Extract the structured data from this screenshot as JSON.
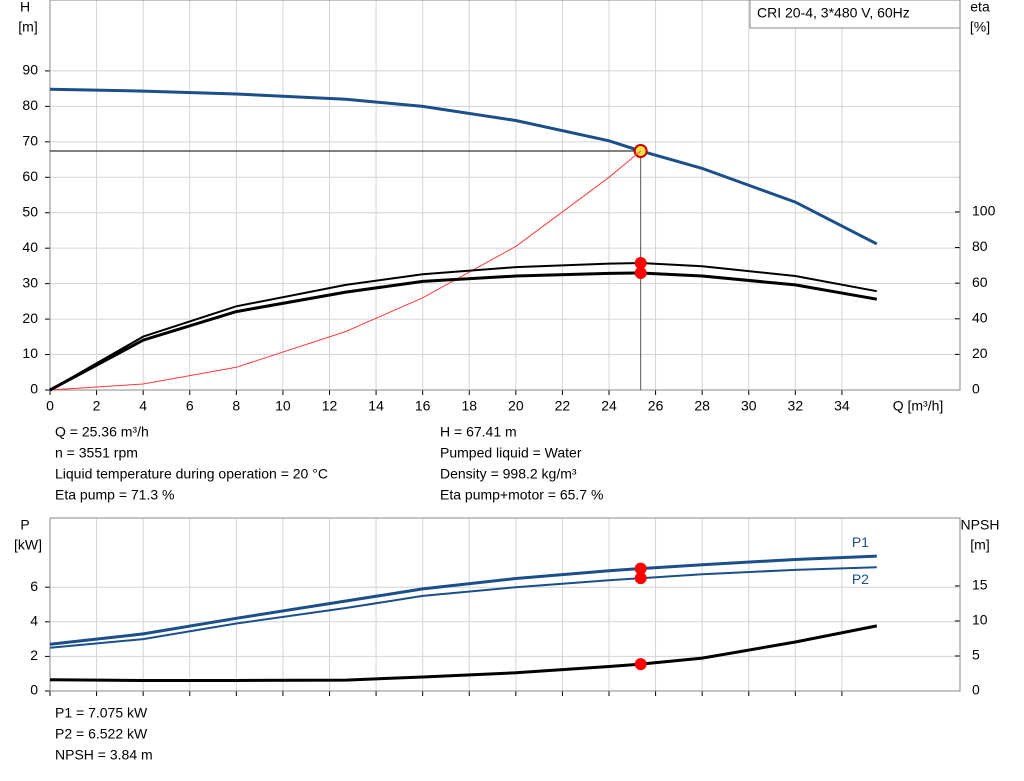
{
  "chart_data": [
    {
      "type": "line",
      "title": "CRI 20-4, 3*480 V, 60Hz",
      "y_label": [
        "H",
        "[m]"
      ],
      "y2_label": [
        "eta",
        "[%]"
      ],
      "x_label": "Q [m³/h]",
      "x": [
        0,
        4,
        8,
        12.7,
        16,
        20,
        24,
        25.36,
        28,
        32,
        35.5
      ],
      "xlim": [
        0,
        39.07
      ],
      "xticks": [
        0,
        2,
        4,
        6,
        8,
        10,
        12,
        14,
        16,
        18,
        20,
        22,
        24,
        26,
        28,
        30,
        32,
        34
      ],
      "ylim": [
        0,
        110
      ],
      "yticks": [
        0,
        10,
        20,
        30,
        40,
        50,
        60,
        70,
        80,
        90
      ],
      "y2lim": [
        0,
        219
      ],
      "y2ticks": [
        0,
        20,
        40,
        60,
        80,
        100
      ],
      "grid": true,
      "show_xtick_labels": true,
      "series": [
        {
          "color": "#1a4f8a",
          "width": 3,
          "values": [
            84.8,
            84.3,
            83.5,
            82,
            80,
            76,
            70.3,
            67.41,
            62.5,
            53,
            41.2
          ],
          "marker": {
            "at": 7,
            "color": "#ffe24a"
          },
          "droplines": true
        },
        {
          "color": "#ff3b3b",
          "width": 1,
          "values": [
            0,
            1.7,
            6.4,
            16.5,
            26,
            40.5,
            60,
            67.41,
            null,
            null,
            null
          ]
        },
        {
          "color": "#000000",
          "width": 2,
          "axis": "y2",
          "values": [
            0,
            30,
            47,
            59,
            65,
            69,
            71,
            71.3,
            69.5,
            64,
            55.5
          ],
          "marker": {
            "at": 7,
            "color": "#ff0000"
          }
        },
        {
          "color": "#000000",
          "width": 3,
          "axis": "y2",
          "values": [
            0,
            28,
            44,
            55,
            61,
            64,
            65.5,
            65.7,
            64,
            59,
            51
          ],
          "marker": {
            "at": 7,
            "color": "#ff0000"
          }
        }
      ],
      "annotations": [
        [
          "Q = 25.36 m³/h",
          "n = 3551 rpm",
          "Liquid temperature during operation = 20 °C",
          "Eta pump = 71.3 %"
        ],
        [
          "H = 67.41 m",
          "Pumped liquid = Water",
          "Density = 998.2 kg/m³",
          "Eta pump+motor = 65.7 %"
        ]
      ]
    },
    {
      "type": "line",
      "y_label": [
        "P",
        "[kW]"
      ],
      "y2_label": [
        "NPSH",
        "[m]"
      ],
      "x": [
        0,
        4,
        8,
        12.7,
        16,
        20,
        24,
        25.36,
        28,
        32,
        35.5
      ],
      "xlim": [
        0,
        39.07
      ],
      "xticks": [
        0,
        2,
        4,
        6,
        8,
        10,
        12,
        14,
        16,
        18,
        20,
        22,
        24,
        26,
        28,
        30,
        32,
        34
      ],
      "ylim": [
        0,
        10
      ],
      "yticks": [
        0,
        2,
        4,
        6
      ],
      "y2lim": [
        0,
        24.7
      ],
      "y2ticks": [
        0,
        5,
        10,
        15
      ],
      "grid": true,
      "show_xtick_labels": false,
      "series": [
        {
          "name": "P1",
          "color": "#1a4f8a",
          "width": 3,
          "values": [
            2.7,
            3.3,
            4.2,
            5.2,
            5.9,
            6.5,
            6.95,
            7.075,
            7.3,
            7.6,
            7.8
          ],
          "marker": {
            "at": 7,
            "color": "#ff0000"
          }
        },
        {
          "name": "P2",
          "color": "#1a4f8a",
          "width": 2,
          "values": [
            2.5,
            3.0,
            3.9,
            4.8,
            5.5,
            6.0,
            6.4,
            6.522,
            6.75,
            7.0,
            7.15
          ],
          "marker": {
            "at": 7,
            "color": "#ff0000"
          }
        },
        {
          "color": "#000000",
          "width": 3,
          "axis": "y2",
          "values": [
            1.6,
            1.5,
            1.5,
            1.55,
            2,
            2.6,
            3.5,
            3.84,
            4.7,
            7,
            9.3
          ],
          "marker": {
            "at": 7,
            "color": "#ff0000"
          }
        }
      ],
      "annotations": [
        [
          "P1 = 7.075 kW",
          "P2 = 6.522 kW",
          "NPSH = 3.84 m"
        ]
      ]
    }
  ]
}
